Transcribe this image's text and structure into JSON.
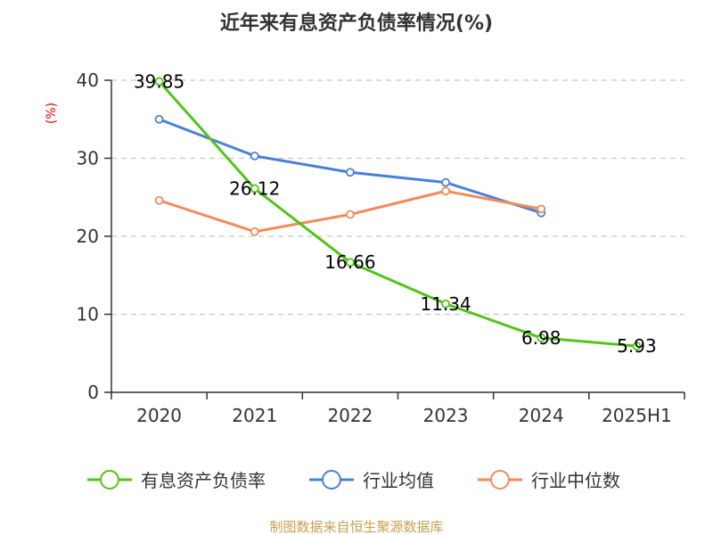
{
  "chart_data": {
    "type": "line",
    "title": "近年来有息资产负债率情况(%)",
    "ylabel": "(%)",
    "categories": [
      "2020",
      "2021",
      "2022",
      "2023",
      "2024",
      "2025H1"
    ],
    "y_ticks": [
      "0",
      "10",
      "20",
      "30",
      "40"
    ],
    "ylim": [
      0,
      40
    ],
    "grid": true,
    "legend_position": "bottom",
    "series": [
      {
        "name": "有息资产负债率",
        "color": "#52c41a",
        "values": [
          39.85,
          26.12,
          16.66,
          11.34,
          6.98,
          5.93
        ],
        "labels": [
          "39.85",
          "26.12",
          "16.66",
          "11.34",
          "6.98",
          "5.93"
        ]
      },
      {
        "name": "行业均值",
        "color": "#4a7fd9",
        "values": [
          35.0,
          30.3,
          28.2,
          26.9,
          23.0,
          null
        ]
      },
      {
        "name": "行业中位数",
        "color": "#f28a5b",
        "values": [
          24.6,
          20.6,
          22.8,
          25.8,
          23.5,
          null
        ]
      }
    ]
  },
  "source": "制图数据来自恒生聚源数据库"
}
